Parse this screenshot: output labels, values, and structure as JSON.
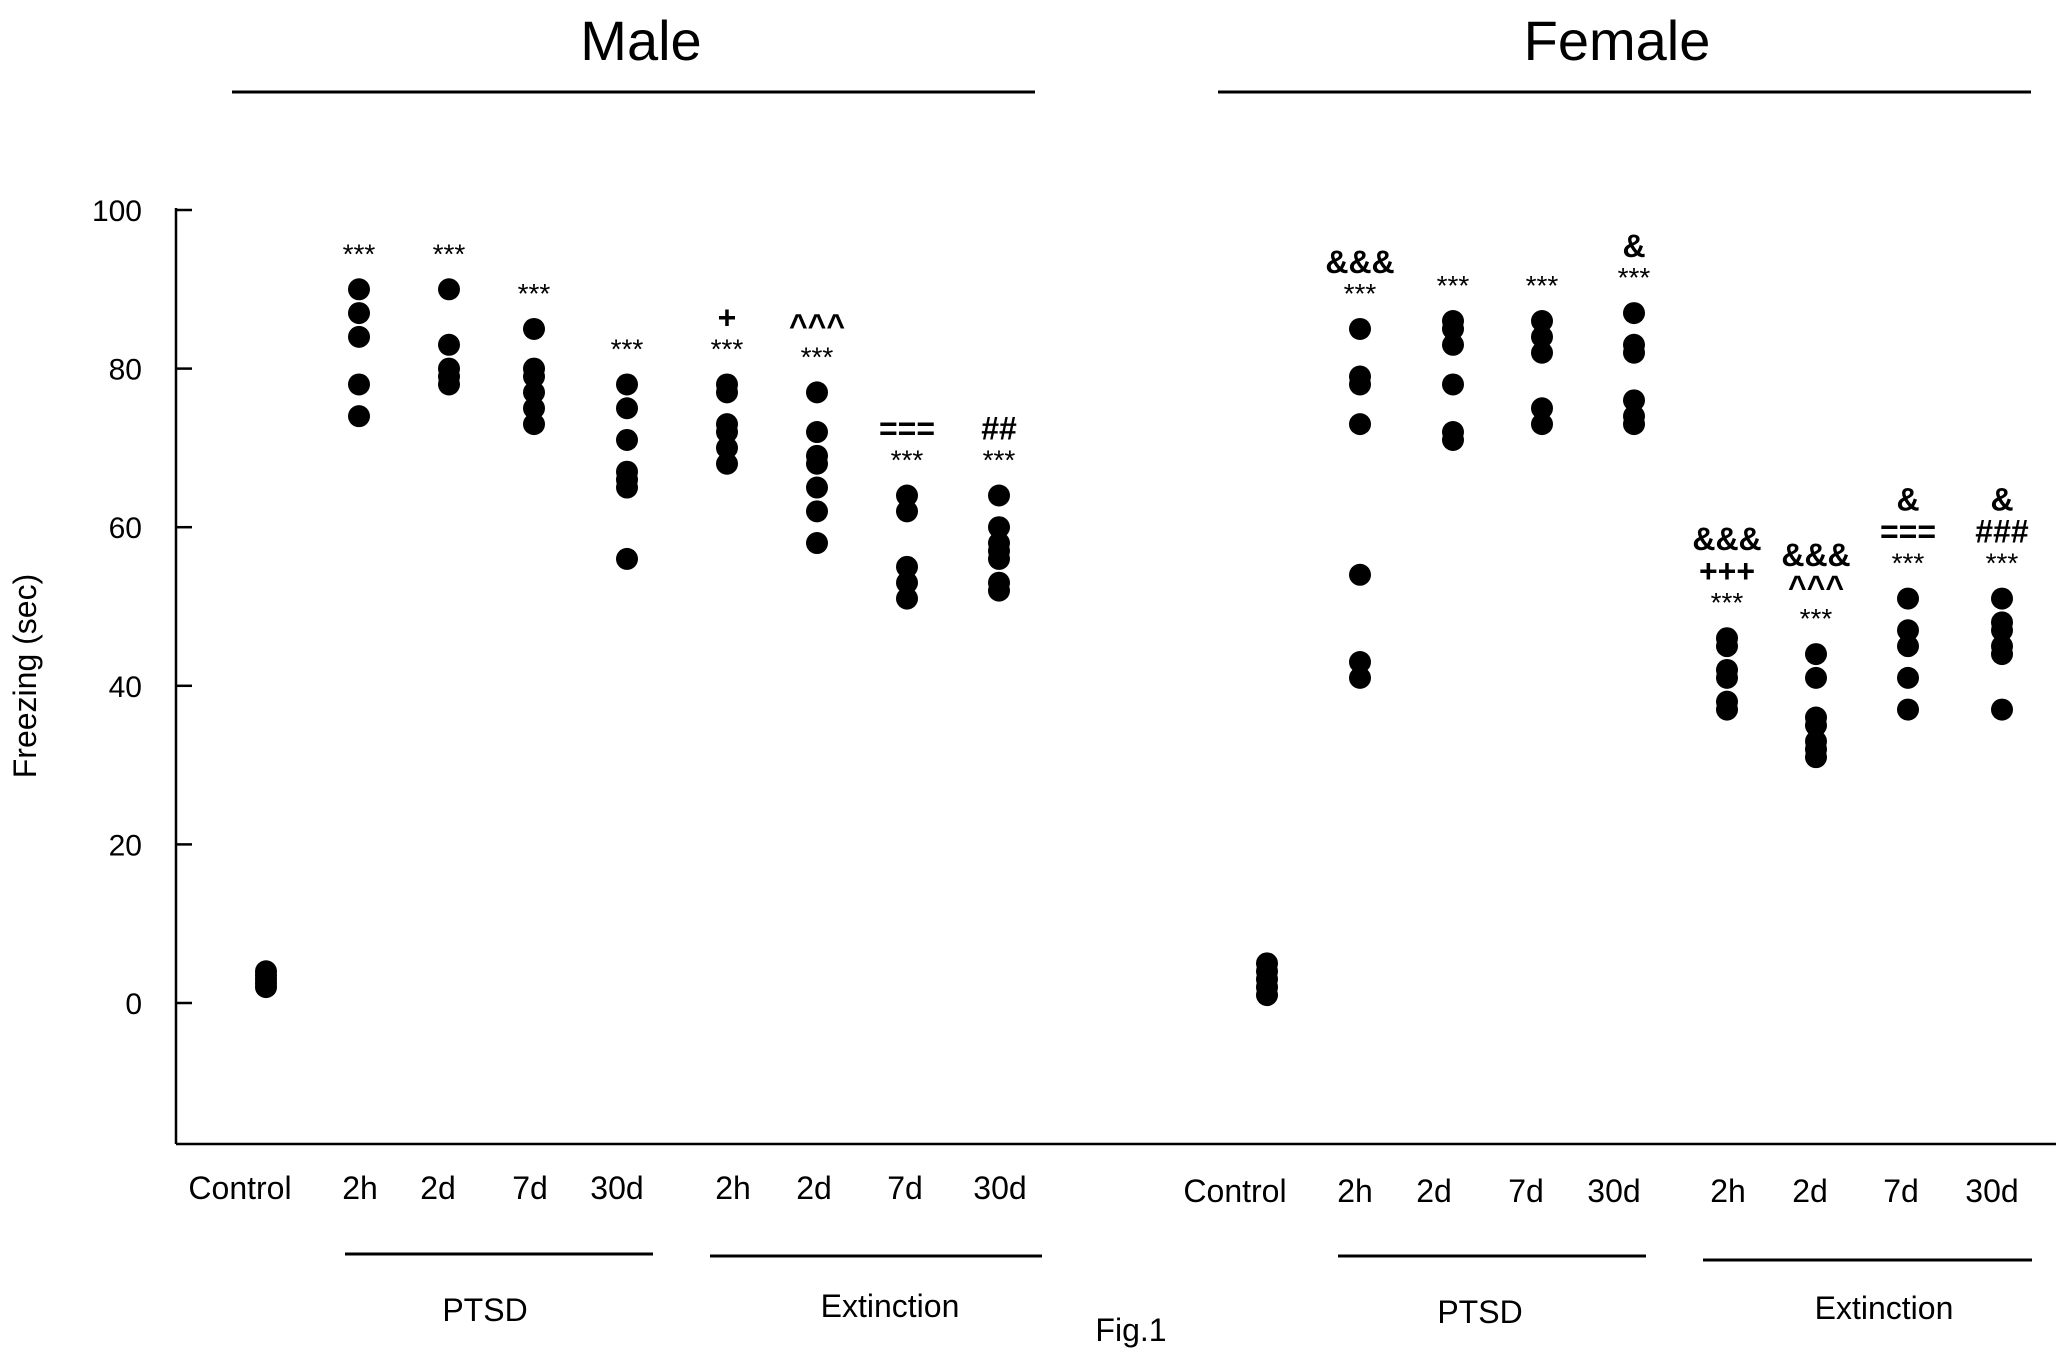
{
  "chart_data": {
    "type": "scatter",
    "ylabel": "Freezing (sec)",
    "ylim": [
      -18,
      100
    ],
    "yticks": [
      0,
      20,
      40,
      60,
      80,
      100
    ],
    "figure_label": "Fig.1",
    "panels": [
      {
        "title": "Male",
        "group_labels": [
          "PTSD",
          "Extinction"
        ],
        "categories": [
          {
            "label": "Control",
            "values": [
              2,
              2.5,
              3,
              3.5,
              4
            ],
            "annotations": []
          },
          {
            "label": "2h",
            "values": [
              74,
              78,
              84,
              87,
              90
            ],
            "annotations": [
              "***"
            ]
          },
          {
            "label": "2d",
            "values": [
              78,
              79,
              80,
              83,
              90
            ],
            "annotations": [
              "***"
            ]
          },
          {
            "label": "7d",
            "values": [
              73,
              75,
              77,
              79,
              80,
              85
            ],
            "annotations": [
              "***"
            ]
          },
          {
            "label": "30d",
            "values": [
              56,
              65,
              66,
              67,
              71,
              75,
              78
            ],
            "annotations": [
              "***"
            ]
          },
          {
            "label": "2h",
            "values": [
              68,
              70,
              72,
              73,
              77,
              78
            ],
            "annotations": [
              "+",
              "***"
            ]
          },
          {
            "label": "2d",
            "values": [
              58,
              62,
              65,
              68,
              69,
              72,
              77
            ],
            "annotations": [
              "^^^",
              "***"
            ]
          },
          {
            "label": "7d",
            "values": [
              51,
              53,
              55,
              62,
              64
            ],
            "annotations": [
              "===",
              "***"
            ]
          },
          {
            "label": "30d",
            "values": [
              52,
              53,
              56,
              57,
              58,
              60,
              64
            ],
            "annotations": [
              "##",
              "***"
            ]
          }
        ]
      },
      {
        "title": "Female",
        "group_labels": [
          "PTSD",
          "Extinction"
        ],
        "categories": [
          {
            "label": "Control",
            "values": [
              1,
              2,
              3,
              4,
              5
            ],
            "annotations": []
          },
          {
            "label": "2h",
            "values": [
              41,
              43,
              54,
              73,
              78,
              79,
              85
            ],
            "annotations": [
              "&&&",
              "***"
            ]
          },
          {
            "label": "2d",
            "values": [
              71,
              72,
              78,
              83,
              85,
              86
            ],
            "annotations": [
              "***"
            ]
          },
          {
            "label": "7d",
            "values": [
              73,
              75,
              82,
              84,
              86
            ],
            "annotations": [
              "***"
            ]
          },
          {
            "label": "30d",
            "values": [
              73,
              74,
              76,
              82,
              83,
              87
            ],
            "annotations": [
              "&",
              "***"
            ]
          },
          {
            "label": "2h",
            "values": [
              37,
              38,
              41,
              42,
              45,
              46
            ],
            "annotations": [
              "&&&",
              "+++",
              "***"
            ]
          },
          {
            "label": "2d",
            "values": [
              31,
              32,
              33,
              35,
              36,
              41,
              44
            ],
            "annotations": [
              "&&&",
              "^^^",
              "***"
            ]
          },
          {
            "label": "7d",
            "values": [
              37,
              41,
              45,
              47,
              51
            ],
            "annotations": [
              "&",
              "===",
              "***"
            ]
          },
          {
            "label": "30d",
            "values": [
              37,
              44,
              45,
              47,
              48,
              51
            ],
            "annotations": [
              "&",
              "###",
              "***"
            ]
          }
        ]
      }
    ]
  }
}
